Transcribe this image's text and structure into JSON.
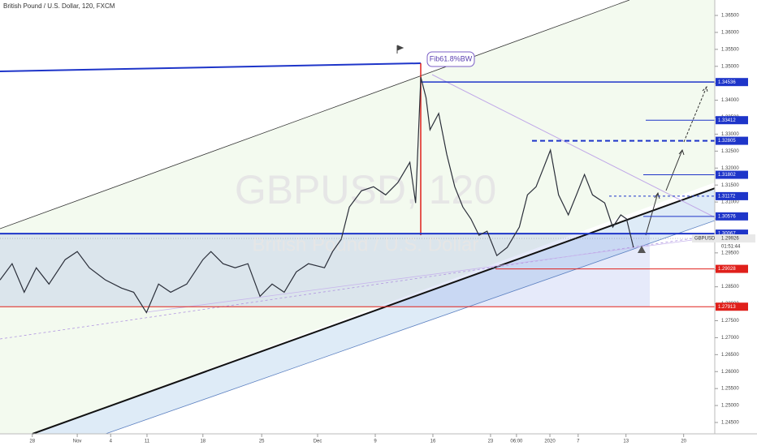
{
  "chart_data": {
    "type": "line",
    "title": "British Pound / U.S. Dollar, 120, FXCM",
    "watermark": "GBPUSD, 120",
    "watermark_subtitle": "British Pound / U.S. Dollar",
    "annotation": "Fib61.8%BW",
    "color": "#2a2e39",
    "xlim": [
      0,
      124
    ],
    "ylim": [
      1.24165,
      1.36955
    ],
    "x": [
      0,
      2.1,
      4.2,
      6.3,
      8.5,
      11.3,
      13.4,
      15.5,
      18.3,
      21.1,
      23.2,
      25.4,
      27.5,
      29.6,
      32.4,
      35.2,
      36.6,
      38.7,
      40.8,
      43.0,
      45.1,
      47.2,
      49.3,
      51.4,
      53.5,
      56.3,
      57.7,
      59.2,
      60.6,
      62.7,
      64.8,
      66.9,
      69.0,
      71.1,
      72.1,
      73.0,
      73.9,
      74.6,
      76.1,
      77.5,
      78.9,
      80.3,
      81.7,
      83.1,
      84.5,
      86.2,
      88.0,
      90.1,
      91.5,
      93.0,
      94.4,
      95.5,
      96.9,
      98.6,
      100.0,
      101.4,
      102.8,
      104.9,
      106.3,
      107.7,
      108.7,
      109.9
    ],
    "values": [
      1.287,
      1.2918,
      1.2834,
      1.2906,
      1.2858,
      1.293,
      1.2954,
      1.2906,
      1.287,
      1.2846,
      1.2834,
      1.2774,
      1.2858,
      1.2834,
      1.2858,
      1.293,
      1.2954,
      1.2918,
      1.2906,
      1.2918,
      1.2822,
      1.2858,
      1.2834,
      1.2894,
      1.2918,
      1.2906,
      1.2954,
      1.299,
      1.3085,
      1.3133,
      1.3145,
      1.3121,
      1.3157,
      1.3217,
      1.3097,
      1.3468,
      1.3408,
      1.3313,
      1.3361,
      1.3241,
      1.3145,
      1.3085,
      1.305,
      1.3002,
      1.3014,
      1.2942,
      1.2966,
      1.3026,
      1.3121,
      1.3145,
      1.3205,
      1.3253,
      1.3121,
      1.3062,
      1.3121,
      1.3181,
      1.3121,
      1.3097,
      1.3026,
      1.3062,
      1.305,
      1.2966
    ],
    "xticks": [
      {
        "value": 5.6,
        "label": "28"
      },
      {
        "value": 13.4,
        "label": "Nov"
      },
      {
        "value": 19.2,
        "label": "4"
      },
      {
        "value": 25.5,
        "label": "11"
      },
      {
        "value": 35.2,
        "label": "18"
      },
      {
        "value": 45.4,
        "label": "25"
      },
      {
        "value": 55.1,
        "label": "Dec"
      },
      {
        "value": 65.1,
        "label": "9"
      },
      {
        "value": 75.1,
        "label": "16"
      },
      {
        "value": 85.1,
        "label": "23"
      },
      {
        "value": 89.6,
        "label": "06:00"
      },
      {
        "value": 95.4,
        "label": "2020"
      },
      {
        "value": 100.3,
        "label": "7"
      },
      {
        "value": 108.6,
        "label": "13"
      },
      {
        "value": 118.6,
        "label": "20"
      }
    ],
    "yticks": [
      {
        "value": 1.245,
        "label": "1.24500"
      },
      {
        "value": 1.25,
        "label": "1.25000"
      },
      {
        "value": 1.255,
        "label": "1.25500"
      },
      {
        "value": 1.26,
        "label": "1.26000"
      },
      {
        "value": 1.265,
        "label": "1.26500"
      },
      {
        "value": 1.27,
        "label": "1.27000"
      },
      {
        "value": 1.275,
        "label": "1.27500"
      },
      {
        "value": 1.28,
        "label": "1.28000"
      },
      {
        "value": 1.285,
        "label": "1.28500"
      },
      {
        "value": 1.29,
        "label": "1.29000"
      },
      {
        "value": 1.295,
        "label": "1.29500"
      },
      {
        "value": 1.3,
        "label": "1.30000"
      },
      {
        "value": 1.305,
        "label": "1.30500"
      },
      {
        "value": 1.31,
        "label": "1.31000"
      },
      {
        "value": 1.315,
        "label": "1.31500"
      },
      {
        "value": 1.32,
        "label": "1.32000"
      },
      {
        "value": 1.325,
        "label": "1.32500"
      },
      {
        "value": 1.33,
        "label": "1.33000"
      },
      {
        "value": 1.335,
        "label": "1.33500"
      },
      {
        "value": 1.34,
        "label": "1.34000"
      },
      {
        "value": 1.345,
        "label": "1.34500"
      },
      {
        "value": 1.35,
        "label": "1.35000"
      },
      {
        "value": 1.355,
        "label": "1.35500"
      },
      {
        "value": 1.36,
        "label": "1.36000"
      },
      {
        "value": 1.365,
        "label": "1.36500"
      }
    ],
    "levels": [
      {
        "value": 1.34536,
        "label": "1.34536",
        "color": "#1e35c9"
      },
      {
        "value": 1.33412,
        "label": "1.33412",
        "color": "#1e35c9"
      },
      {
        "value": 1.32805,
        "label": "1.32805",
        "color": "#1e35c9"
      },
      {
        "value": 1.31802,
        "label": "1.31802",
        "color": "#1e35c9"
      },
      {
        "value": 1.31172,
        "label": "1.31172",
        "color": "#1e35c9"
      },
      {
        "value": 1.30576,
        "label": "1.30576",
        "color": "#1e35c9"
      },
      {
        "value": 1.30067,
        "label": "1.30067",
        "color": "#1e35c9"
      },
      {
        "value": 1.29028,
        "label": "1.29028",
        "color": "#e0201b"
      },
      {
        "value": 1.27913,
        "label": "1.27913",
        "color": "#e0201b"
      }
    ],
    "last_price": {
      "symbol": "GBPUSD",
      "value": 1.29926,
      "label": "1.29926",
      "countdown": "01:51:44"
    }
  }
}
